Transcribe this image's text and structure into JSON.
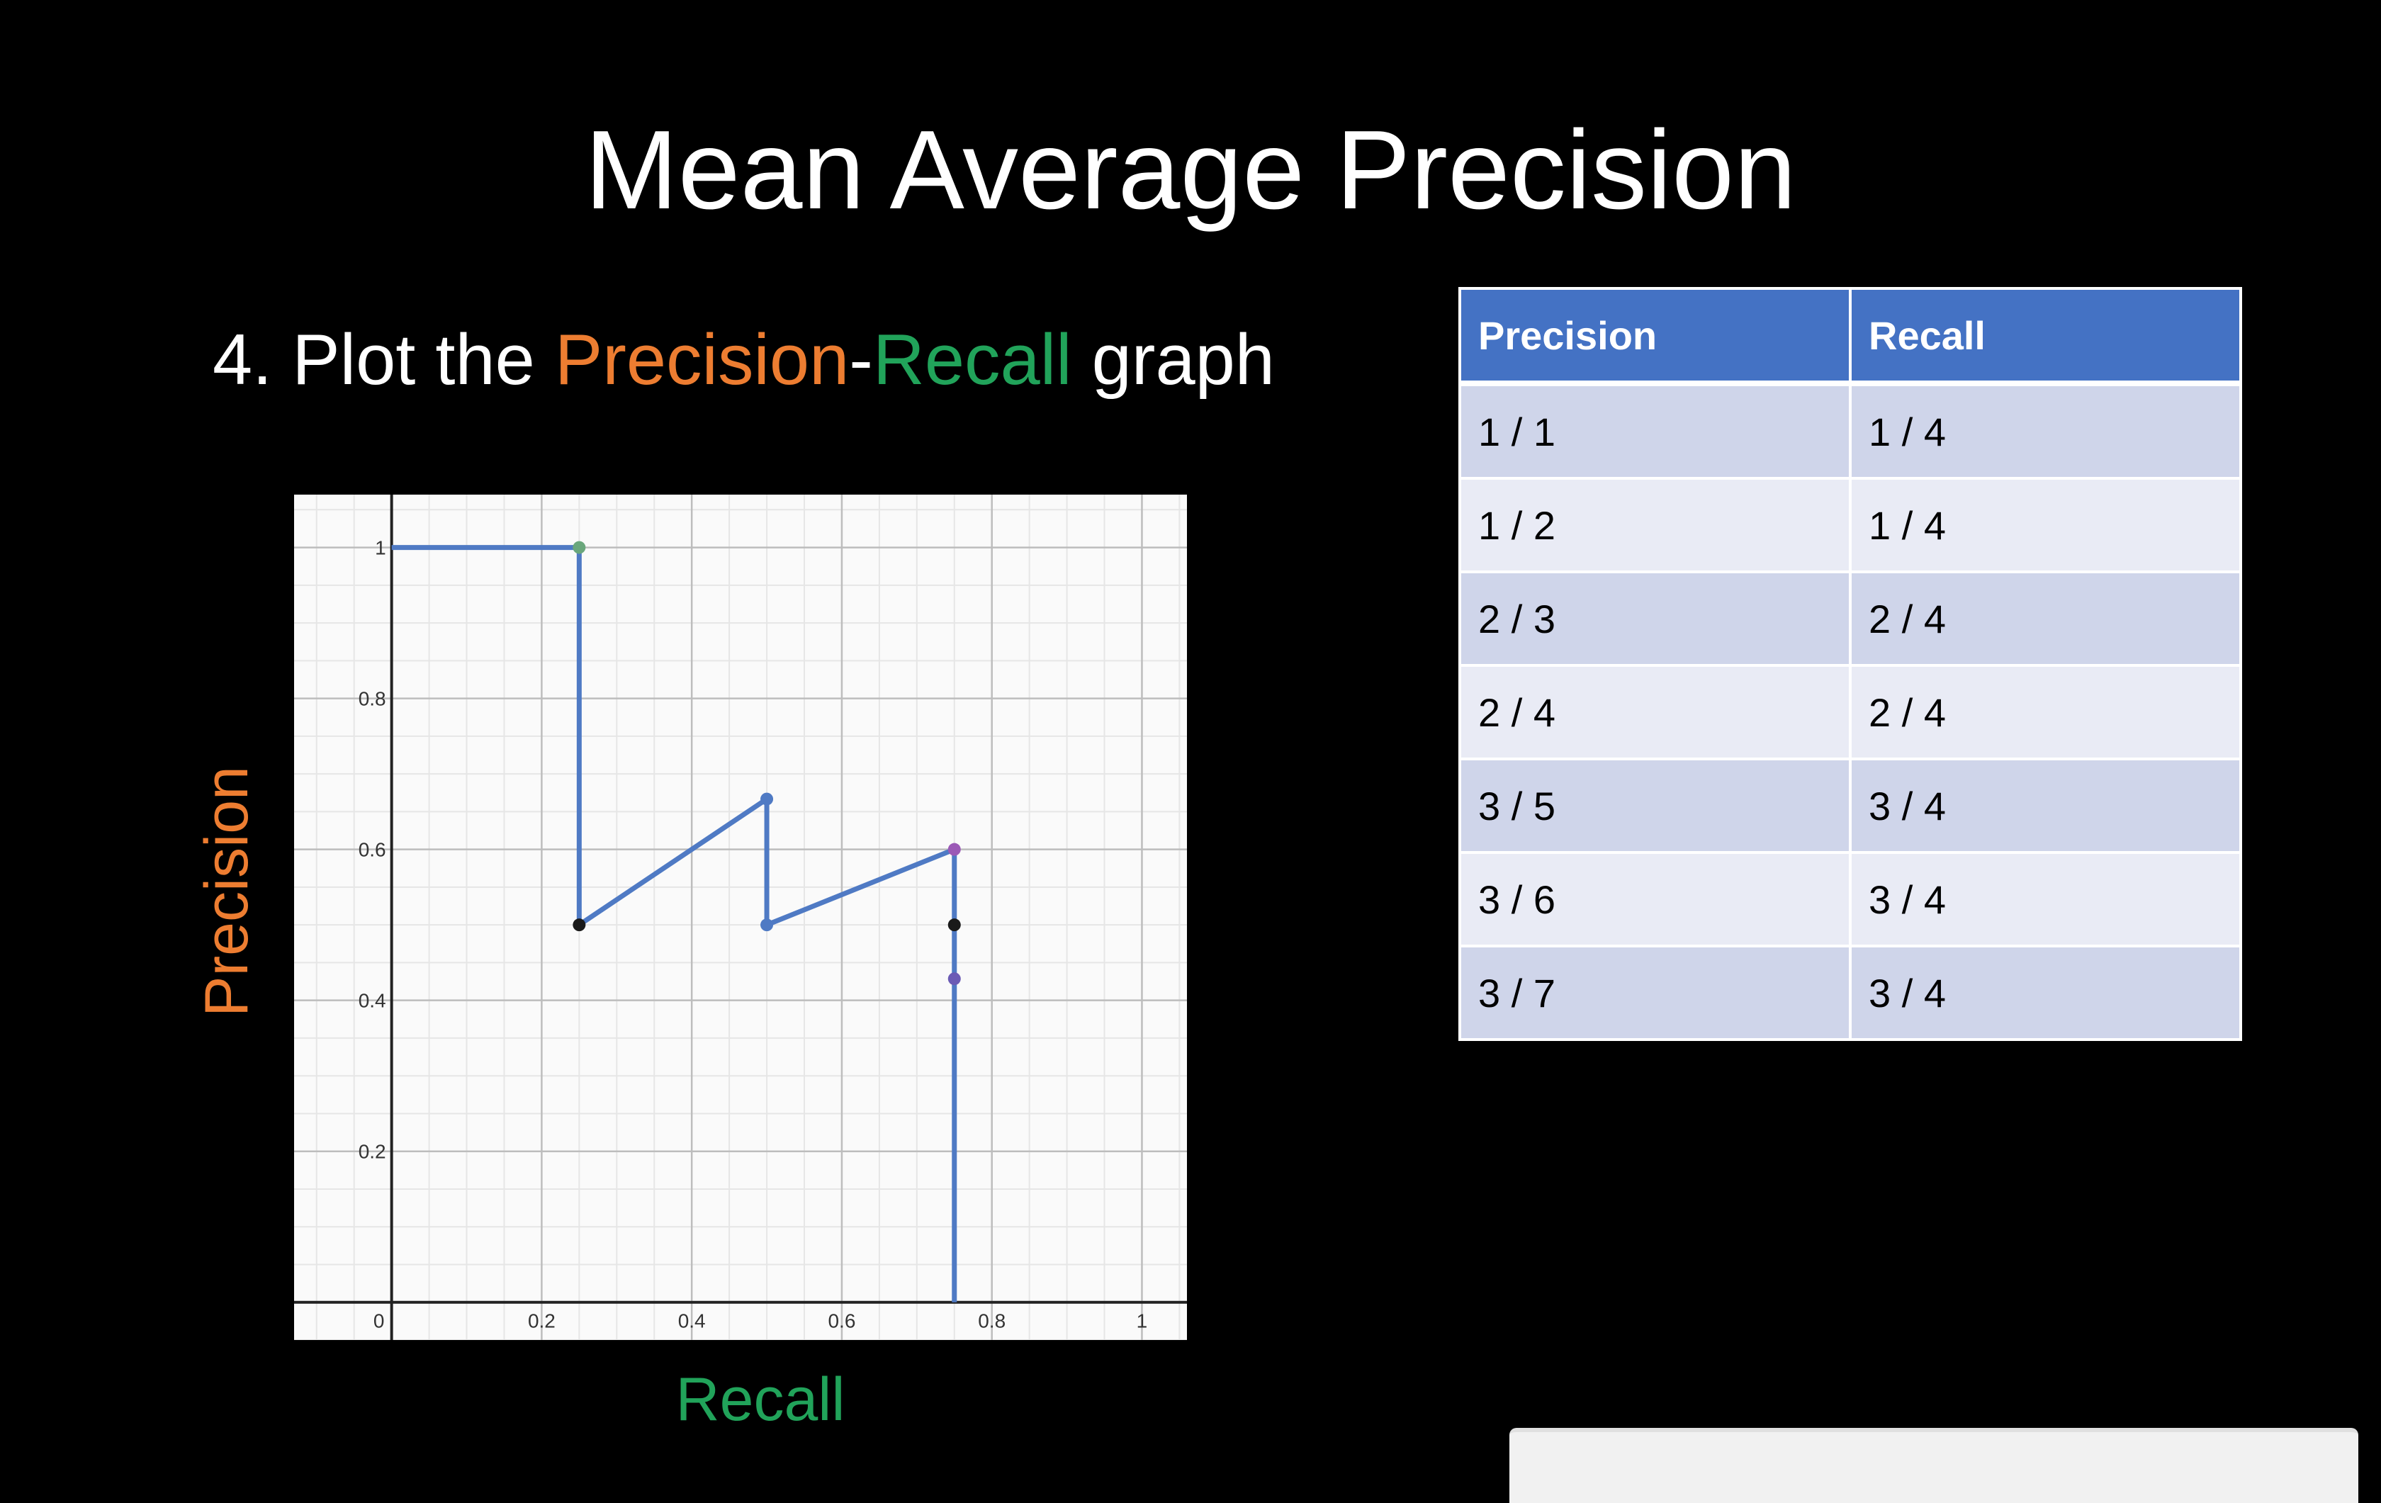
{
  "slide": {
    "title": "Mean Average Precision",
    "step": {
      "prefix": "4. Plot the ",
      "word1": "Precision",
      "dash": "-",
      "word2": "Recall",
      "suffix": " graph"
    }
  },
  "colors": {
    "background": "#000000",
    "precision_orange": "#ed7d31",
    "recall_green": "#21a35a",
    "line_blue": "#4f7ac4",
    "table_header": "#4472c4",
    "table_row_dark": "#cfd5ea",
    "table_row_light": "#e9ebf5"
  },
  "chart_data": {
    "type": "line",
    "xlabel": "Recall",
    "ylabel": "Precision",
    "xlim": [
      -0.13,
      1.06
    ],
    "ylim": [
      -0.05,
      1.07
    ],
    "x_ticks": [
      {
        "value": 0,
        "label": "0"
      },
      {
        "value": 0.2,
        "label": "0.2"
      },
      {
        "value": 0.4,
        "label": "0.4"
      },
      {
        "value": 0.6,
        "label": "0.6"
      },
      {
        "value": 0.8,
        "label": "0.8"
      },
      {
        "value": 1,
        "label": "1"
      }
    ],
    "y_ticks": [
      {
        "value": 0.2,
        "label": "0.2"
      },
      {
        "value": 0.4,
        "label": "0.4"
      },
      {
        "value": 0.6,
        "label": "0.6"
      },
      {
        "value": 0.8,
        "label": "0.8"
      },
      {
        "value": 1,
        "label": "1"
      }
    ],
    "grid": true,
    "series": [
      {
        "x": [
          0,
          0.25,
          0.25,
          0.5,
          0.5,
          0.75,
          0.75,
          0.75,
          0.75
        ],
        "y": [
          1,
          1,
          0.5,
          0.6667,
          0.5,
          0.6,
          0.5,
          0.4286,
          0
        ],
        "color": "#4f7ac4"
      }
    ],
    "points": [
      {
        "x": 0.25,
        "y": 1,
        "color": "#6aa77c"
      },
      {
        "x": 0.25,
        "y": 0.5,
        "color": "#1a1a1a"
      },
      {
        "x": 0.5,
        "y": 0.6667,
        "color": "#4f7ac4"
      },
      {
        "x": 0.5,
        "y": 0.5,
        "color": "#4f7ac4"
      },
      {
        "x": 0.75,
        "y": 0.6,
        "color": "#9b59b6"
      },
      {
        "x": 0.75,
        "y": 0.5,
        "color": "#1a1a1a"
      },
      {
        "x": 0.75,
        "y": 0.4286,
        "color": "#6b5bb5"
      }
    ]
  },
  "table": {
    "headers": [
      "Precision",
      "Recall"
    ],
    "rows": [
      [
        "1 / 1",
        "1 / 4"
      ],
      [
        "1 / 2",
        "1 / 4"
      ],
      [
        "2 / 3",
        "2 / 4"
      ],
      [
        "2 / 4",
        "2 / 4"
      ],
      [
        "3 / 5",
        "3 / 4"
      ],
      [
        "3 / 6",
        "3 / 4"
      ],
      [
        "3 / 7",
        "3 / 4"
      ]
    ]
  }
}
